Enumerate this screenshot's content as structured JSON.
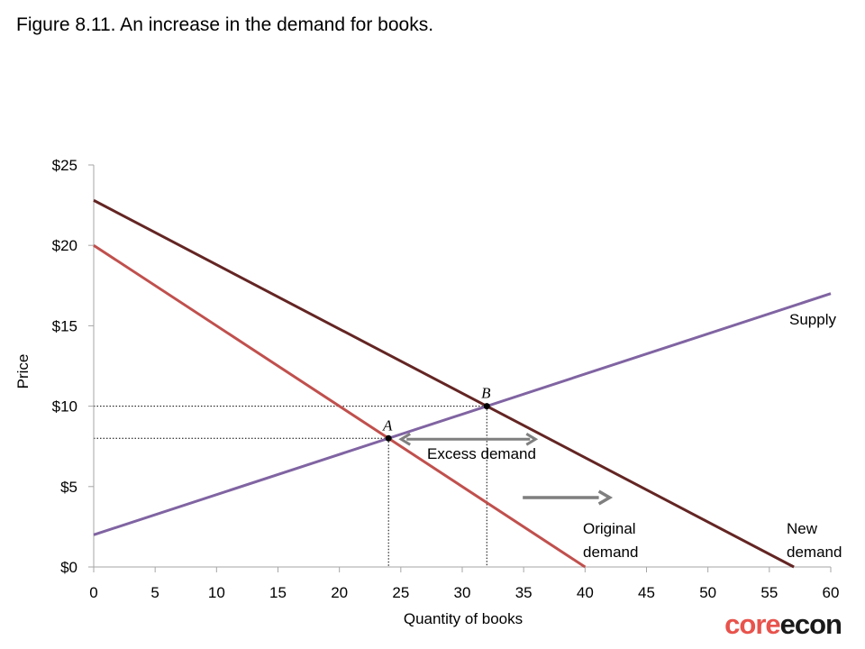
{
  "figure_title": "Figure 8.11. An increase in the demand for books.",
  "logo": {
    "part1": "core",
    "part2": "econ"
  },
  "chart_data": {
    "type": "line",
    "xlabel": "Quantity of books",
    "ylabel": "Price",
    "xlim": [
      0,
      60
    ],
    "ylim": [
      0,
      25
    ],
    "x_ticks": [
      0,
      5,
      10,
      15,
      20,
      25,
      30,
      35,
      40,
      45,
      50,
      55,
      60
    ],
    "y_ticks": [
      0,
      5,
      10,
      15,
      20,
      25
    ],
    "y_tick_labels": [
      "$0",
      "$5",
      "$10",
      "$15",
      "$20",
      "$25"
    ],
    "grid": false,
    "series": [
      {
        "name": "Supply",
        "label_lines": [
          "Supply"
        ],
        "color": "#8064a2",
        "points": [
          [
            0,
            2
          ],
          [
            60,
            17
          ]
        ]
      },
      {
        "name": "Original demand",
        "label_lines": [
          "Original",
          "demand"
        ],
        "color": "#c0504d",
        "points": [
          [
            0,
            20
          ],
          [
            40,
            0
          ]
        ]
      },
      {
        "name": "New demand",
        "label_lines": [
          "New",
          "demand"
        ],
        "color": "#632523",
        "points": [
          [
            0,
            22.8
          ],
          [
            57,
            0
          ]
        ]
      }
    ],
    "points": [
      {
        "name": "A",
        "x": 24,
        "y": 8
      },
      {
        "name": "B",
        "x": 32,
        "y": 10
      }
    ],
    "annotations": {
      "excess_demand": {
        "text": "Excess demand",
        "from_x": 24,
        "to_x": 32,
        "y": 8
      },
      "shift_arrow": {
        "from_x": 35,
        "to_x": 42,
        "y": 4.2,
        "color": "#7f7f7f"
      }
    }
  }
}
